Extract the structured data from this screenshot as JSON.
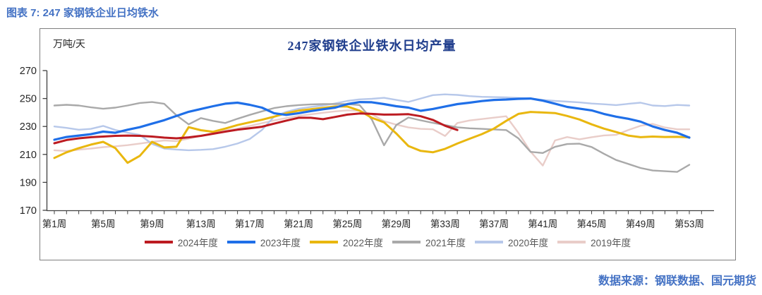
{
  "page": {
    "caption": "图表 7: 247 家钢铁企业日均铁水",
    "source_note": "数据来源：钢联数据、国元期货"
  },
  "colors": {
    "caption_blue": "#4472c4",
    "title_navy": "#1f3d8c",
    "axis_gray": "#404040",
    "border_gray": "#7f7f7f"
  },
  "chart_data": {
    "type": "line",
    "title": "247家钢铁企业铁水日均产量",
    "unit_label": "万吨/天",
    "grid": false,
    "legend_position": "bottom",
    "y_axis": {
      "min": 170,
      "max": 270,
      "step": 20,
      "ticks": [
        170,
        190,
        210,
        230,
        250,
        270
      ]
    },
    "x_axis": {
      "total_weeks": 53,
      "ticks": [
        {
          "week": 1,
          "label": "第1周"
        },
        {
          "week": 5,
          "label": "第5周"
        },
        {
          "week": 9,
          "label": "第9周"
        },
        {
          "week": 13,
          "label": "第13周"
        },
        {
          "week": 17,
          "label": "第17周"
        },
        {
          "week": 21,
          "label": "第21周"
        },
        {
          "week": 25,
          "label": "第25周"
        },
        {
          "week": 29,
          "label": "第29周"
        },
        {
          "week": 33,
          "label": "第33周"
        },
        {
          "week": 37,
          "label": "第37周"
        },
        {
          "week": 41,
          "label": "第41周"
        },
        {
          "week": 45,
          "label": "第45周"
        },
        {
          "week": 49,
          "label": "第49周"
        },
        {
          "week": 53,
          "label": "第53周"
        }
      ]
    },
    "series": [
      {
        "key": "2024",
        "name": "2024年度",
        "color": "#bc1b21",
        "start_week": 1,
        "values": [
          218,
          220.3,
          221.5,
          222.3,
          222.8,
          223.3,
          223.5,
          223.3,
          222.8,
          222,
          221.5,
          222.2,
          223.3,
          224.8,
          226.3,
          227.7,
          228.7,
          229.8,
          232,
          234.2,
          236.2,
          236.2,
          235.2,
          236.8,
          238.5,
          239.3,
          239,
          238.5,
          238.6,
          238.8,
          237.3,
          234.7,
          230.5,
          227.5
        ]
      },
      {
        "key": "2023",
        "name": "2023年度",
        "color": "#1f6fe8",
        "start_week": 1,
        "values": [
          220.5,
          222.5,
          223.5,
          224.5,
          226.3,
          225.5,
          227.7,
          229.5,
          232,
          234.5,
          237.5,
          240.5,
          242.5,
          244.5,
          246.3,
          247,
          245.5,
          243.5,
          239.5,
          238.3,
          239.5,
          241,
          242.3,
          243.5,
          246,
          247.5,
          247.3,
          246,
          244.5,
          243.5,
          241.2,
          242.5,
          244.3,
          246,
          247,
          248.2,
          249,
          249.3,
          249.8,
          250,
          248.5,
          246.3,
          244,
          242.8,
          241.5,
          239,
          237,
          235.5,
          233.5,
          230,
          227.5,
          225.5,
          222
        ]
      },
      {
        "key": "2022",
        "name": "2022年度",
        "color": "#e9b70f",
        "start_week": 1,
        "values": [
          207.5,
          211.5,
          214.5,
          217,
          219,
          214.5,
          204,
          209,
          219,
          215,
          215.5,
          229.5,
          227.3,
          226.2,
          228.5,
          231,
          233,
          234.8,
          237,
          239.5,
          241.3,
          242.3,
          243.3,
          244.3,
          244.3,
          241.3,
          236.2,
          233,
          225,
          216,
          212.5,
          211.5,
          214,
          217.8,
          221.2,
          224.5,
          228.5,
          234,
          239,
          240.4,
          240,
          239.6,
          237.5,
          235,
          231.5,
          228.5,
          226,
          223.5,
          222.3,
          222.8,
          222.5,
          222.6,
          222.2
        ]
      },
      {
        "key": "2021",
        "name": "2021年度",
        "color": "#a9a9a9",
        "start_week": 1,
        "values": [
          245,
          245.5,
          245,
          243.7,
          242.7,
          243.5,
          245,
          246.8,
          247.5,
          246.2,
          238,
          231.5,
          236,
          234,
          232.5,
          235.5,
          238.3,
          240.8,
          243.2,
          244.5,
          245.3,
          245.8,
          246,
          246,
          246,
          245.3,
          235,
          216.5,
          231,
          236.4,
          234.4,
          232.6,
          231,
          229.4,
          228.7,
          228.3,
          227.9,
          227.4,
          221.5,
          211.8,
          211,
          215.4,
          217.4,
          217.7,
          215.3,
          210.5,
          206,
          203.2,
          200.3,
          198.5,
          198,
          197.5,
          202.6
        ]
      },
      {
        "key": "2020",
        "name": "2020年度",
        "color": "#b7c8ea",
        "start_week": 1,
        "values": [
          230,
          229,
          227.7,
          228.3,
          230.4,
          227.5,
          225.5,
          224,
          217.5,
          214.2,
          213.5,
          213,
          213.3,
          213.8,
          215.5,
          217.8,
          221,
          227.5,
          237,
          240.5,
          242.7,
          244,
          245,
          246.5,
          248.3,
          249.4,
          249.8,
          250.5,
          249,
          247.6,
          250,
          252.4,
          253,
          252.6,
          251.7,
          251.2,
          251,
          250.8,
          250.4,
          250,
          249,
          248.3,
          247.8,
          247.2,
          246.4,
          245.9,
          245.3,
          246.2,
          247,
          245,
          244.6,
          245.4,
          245
        ]
      },
      {
        "key": "2019",
        "name": "2019年度",
        "color": "#e9cdc9",
        "start_week": 1,
        "values": [
          213,
          212.4,
          213.4,
          214.2,
          215.2,
          215.8,
          216.6,
          217.8,
          219,
          220,
          219.5,
          221.3,
          223.3,
          225.3,
          227,
          228.5,
          230.3,
          232.3,
          234.3,
          236,
          237.5,
          238.7,
          239.8,
          240.8,
          241.5,
          241.2,
          238.8,
          233.8,
          231.3,
          229.3,
          228.3,
          228,
          223.2,
          232.5,
          234.3,
          235.3,
          236.3,
          237.3,
          225.5,
          212,
          202,
          220,
          222.4,
          220.8,
          222.3,
          223.6,
          224,
          227.5,
          230.5,
          231.8,
          229.3,
          228,
          228
        ]
      }
    ]
  }
}
